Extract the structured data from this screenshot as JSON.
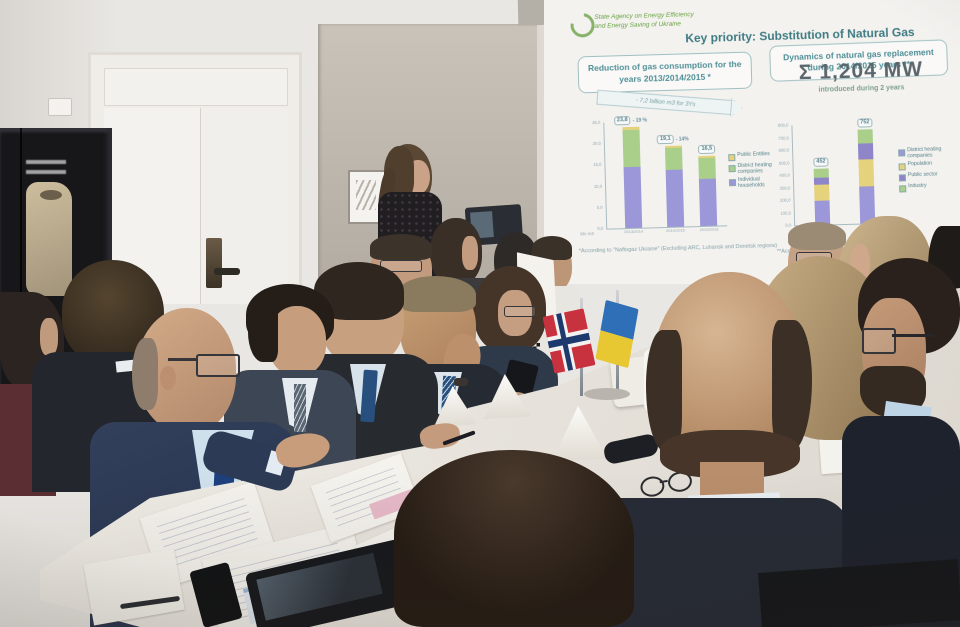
{
  "slide": {
    "logo_line1": "State Agency on Energy Efficiency",
    "logo_line2": "and Energy Saving of Ukraine",
    "title": "Key priority: Substitution of Natural Gas",
    "panel_left": "Reduction of gas consumption for the years 2013/2014/2015 *",
    "panel_right": "Dynamics of natural gas replacement during 2014/2015 years **",
    "sum_value": "Σ 1,204 MW",
    "sum_caption": "introduced during 2 years"
  },
  "chart_data": [
    {
      "type": "bar",
      "stacked": true,
      "title": "Reduction of gas consumption for the years 2013/2014/2015 *",
      "unit": "bln m3",
      "categories": [
        "2013/2014",
        "2014/2015",
        "2015/2016"
      ],
      "series": [
        {
          "name": "Individual households",
          "color": "#9b97d9",
          "values": [
            14.5,
            13.4,
            11.2
          ]
        },
        {
          "name": "District heating companies",
          "color": "#a9cf8b",
          "values": [
            8.6,
            5.2,
            4.9
          ]
        },
        {
          "name": "Public Entities",
          "color": "#e5d27c",
          "values": [
            0.7,
            0.5,
            0.4
          ]
        }
      ],
      "totals": [
        "23,8",
        "19,1",
        "16,5"
      ],
      "pct_changes": [
        "- 19 %",
        "- 14%"
      ],
      "annotation": "- 7,2 billion m3 for 3Ys",
      "ylim": [
        0,
        25
      ],
      "yticks": [
        "0,0",
        "5,0",
        "10,0",
        "15,0",
        "20,0",
        "25,0"
      ],
      "legend": [
        "Public Entities",
        "District heating companies",
        "Individual households"
      ],
      "legend_position": "right",
      "grid": false,
      "footnote": "*According to \"Naftogaz Ukraine\" (Excluding ARC, Luhansk and Donetsk regions)"
    },
    {
      "type": "bar",
      "stacked": true,
      "title": "Dynamics of natural gas replacement during 2014/2015 years **",
      "unit": "MW",
      "categories": [
        "2014",
        "2015"
      ],
      "series": [
        {
          "name": "District heating companies",
          "color": "#9b97d9",
          "values": [
            195,
            295
          ]
        },
        {
          "name": "Population",
          "color": "#e5d27c",
          "values": [
            125,
            215
          ]
        },
        {
          "name": "Public sector",
          "color": "#8f86c9",
          "values": [
            60,
            130
          ]
        },
        {
          "name": "Industry",
          "color": "#a9cf8b",
          "values": [
            72,
            112
          ]
        }
      ],
      "totals": [
        "452",
        "752"
      ],
      "grand_total": "1,204 MW",
      "ylim": [
        0,
        800
      ],
      "yticks": [
        "0,0",
        "100,0",
        "200,0",
        "300,0",
        "400,0",
        "500,0",
        "600,0",
        "700,0",
        "800,0"
      ],
      "legend": [
        "District heating companies",
        "Population",
        "Public sector",
        "Industry"
      ],
      "legend_position": "right",
      "grid": false,
      "footnote": "**According to"
    }
  ],
  "colors": {
    "slide_teal": "#3e7b83",
    "slide_green": "#69a244",
    "sum_grey": "#5a666c",
    "norway_red": "#c8313e",
    "norway_blue": "#1d3a6e",
    "norway_white": "#f2f2f0",
    "ukraine_blue": "#2f6fb8",
    "ukraine_yellow": "#e8c832"
  }
}
